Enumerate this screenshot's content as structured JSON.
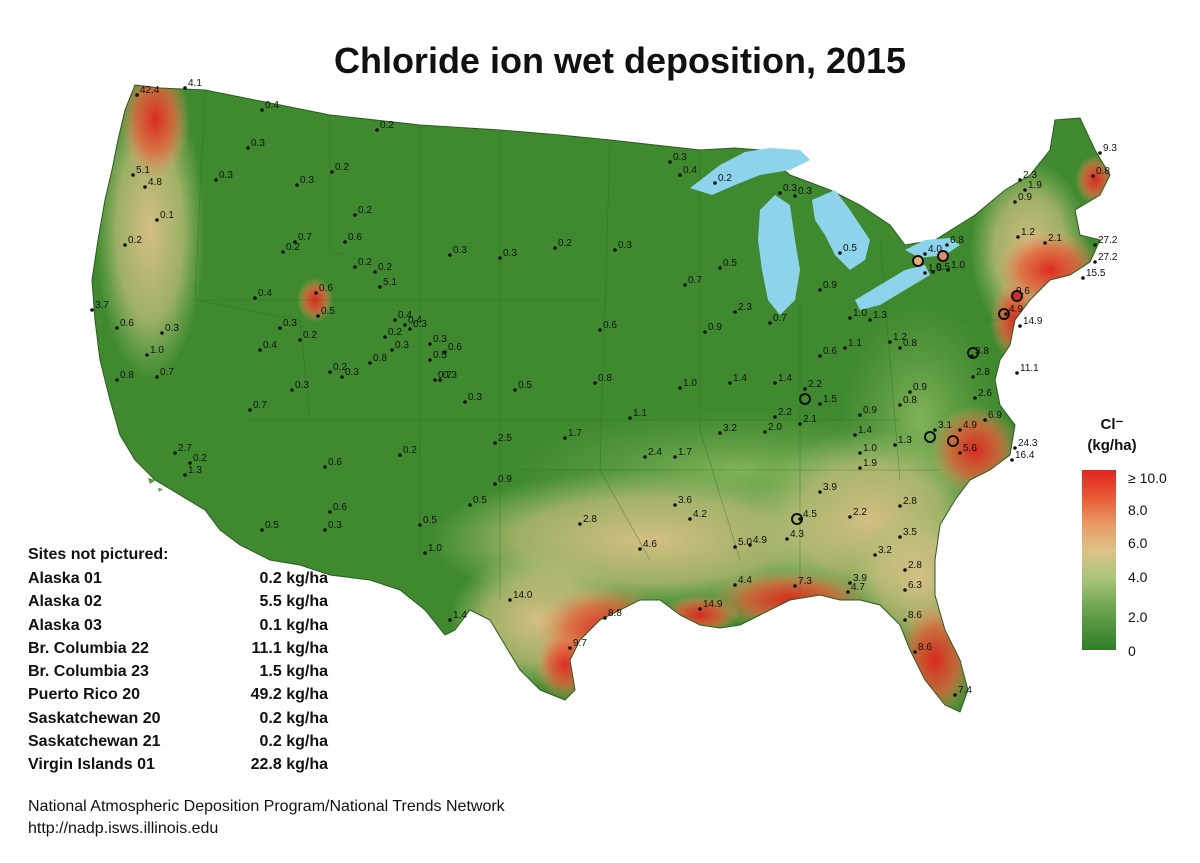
{
  "title": "Chloride ion wet deposition, 2015",
  "legend": {
    "title_line1": "Cl⁻",
    "title_line2": "(kg/ha)",
    "ticks": [
      "≥ 10.0",
      "8.0",
      "6.0",
      "4.0",
      "2.0",
      "0"
    ],
    "colors": {
      "high": "#e0241f",
      "mid_high": "#e99a66",
      "mid": "#dcc287",
      "low_mid": "#6aa24d",
      "low": "#2e7d28"
    }
  },
  "sites_not_pictured": {
    "heading": "Sites not pictured:",
    "rows": [
      {
        "name": "Alaska 01",
        "value": "0.2 kg/ha"
      },
      {
        "name": "Alaska 02",
        "value": "5.5 kg/ha"
      },
      {
        "name": "Alaska 03",
        "value": "0.1 kg/ha"
      },
      {
        "name": "Br. Columbia 22",
        "value": "11.1 kg/ha"
      },
      {
        "name": "Br. Columbia 23",
        "value": "1.5 kg/ha"
      },
      {
        "name": "Puerto Rico 20",
        "value": "49.2 kg/ha"
      },
      {
        "name": "Saskatchewan 20",
        "value": "0.2 kg/ha"
      },
      {
        "name": "Saskatchewan 21",
        "value": "0.2 kg/ha"
      },
      {
        "name": "Virgin Islands 01",
        "value": "22.8 kg/ha"
      }
    ]
  },
  "footer": {
    "line1": "National Atmospheric Deposition Program/National Trends Network",
    "line2": "http://nadp.isws.illinois.edu"
  },
  "site_values": [
    "4.1",
    "42.4",
    "0.4",
    "0.2",
    "0.3",
    "5.1",
    "4.8",
    "0.3",
    "0.3",
    "0.2",
    "0.1",
    "0.2",
    "0.7",
    "0.6",
    "0.2",
    "0.2",
    "0.2",
    "5.1",
    "0.6",
    "3.7",
    "0.6",
    "0.3",
    "1.0",
    "0.7",
    "0.8",
    "0.4",
    "0.3",
    "0.3",
    "0.7",
    "0.4",
    "0.3",
    "0.2",
    "0.3",
    "0.3",
    "0.5",
    "0.6",
    "0.7",
    "0.8",
    "0.2",
    "2.7",
    "0.2",
    "1.3",
    "0.6",
    "0.2",
    "2.5",
    "1.7",
    "2.4",
    "1.7",
    "1.1",
    "1.0",
    "1.4",
    "1.4",
    "2.2",
    "1.5",
    "0.4",
    "0.2",
    "0.3",
    "0.2",
    "0.5",
    "0.4",
    "0.3",
    "0.3",
    "0.5",
    "0.3",
    "0.3",
    "0.2",
    "0.3",
    "0.3",
    "0.4",
    "0.2",
    "0.3",
    "0.3",
    "0.7",
    "0.5",
    "0.6",
    "0.9",
    "0.8",
    "2.3",
    "0.7",
    "0.5",
    "0.9",
    "1.0",
    "1.1",
    "0.6",
    "1.3",
    "0.8",
    "0.9",
    "1.2",
    "2.2",
    "2.0",
    "3.2",
    "2.1",
    "0.9",
    "1.4",
    "1.0",
    "1.3",
    "1.9",
    "3.1",
    "4.9",
    "5.6",
    "6.9",
    "0.8",
    "1.9",
    "2.3",
    "9.3",
    "0.8",
    "0.9",
    "1.2",
    "2.1",
    "27.2",
    "27.2",
    "15.5",
    "9.6",
    "4.9",
    "14.9",
    "4.0",
    "6.8",
    "1.6",
    "1.0",
    "0.5",
    "2.8",
    "2.6",
    "24.3",
    "16.4",
    "11.1",
    "3.8",
    "2.8",
    "3.6",
    "4.2",
    "4.6",
    "5.0",
    "4.9",
    "4.3",
    "4.5",
    "3.9",
    "2.2",
    "2.8",
    "3.5",
    "3.2",
    "2.8",
    "3.9",
    "4.7",
    "6.3",
    "4.4",
    "7.3",
    "14.9",
    "8.8",
    "9.7",
    "8.6",
    "8.6",
    "7.4",
    "14.0",
    "1.4",
    "0.3",
    "0.5",
    "0.5",
    "1.0",
    "0.6",
    "0.5",
    "0.9",
    "0.7"
  ]
}
